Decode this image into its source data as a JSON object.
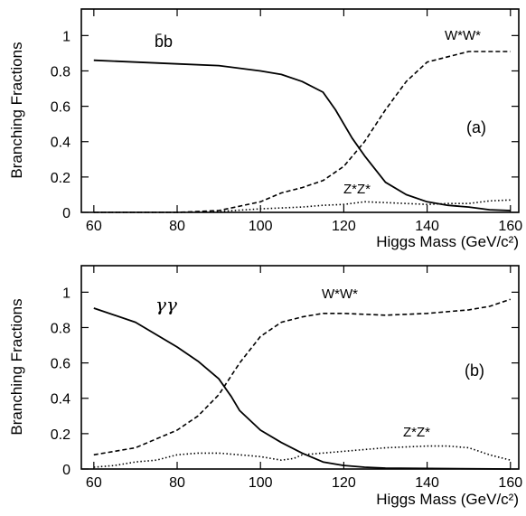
{
  "chart_data": [
    {
      "type": "line",
      "panel_label": "(a)",
      "xlabel": "Higgs Mass (GeV/c²)",
      "ylabel": "Branching Fractions",
      "xlim": [
        57,
        162
      ],
      "ylim": [
        0,
        1.15
      ],
      "xticks": [
        60,
        80,
        100,
        120,
        140,
        160
      ],
      "yticks": [
        0,
        0.2,
        0.4,
        0.6,
        0.8,
        1
      ],
      "grid": false,
      "series": [
        {
          "name": "b̄b",
          "style": "solid",
          "points": [
            [
              60,
              0.86
            ],
            [
              70,
              0.85
            ],
            [
              80,
              0.84
            ],
            [
              90,
              0.83
            ],
            [
              100,
              0.8
            ],
            [
              105,
              0.78
            ],
            [
              110,
              0.74
            ],
            [
              115,
              0.68
            ],
            [
              118,
              0.58
            ],
            [
              120,
              0.5
            ],
            [
              122,
              0.42
            ],
            [
              125,
              0.32
            ],
            [
              130,
              0.17
            ],
            [
              135,
              0.1
            ],
            [
              140,
              0.06
            ],
            [
              145,
              0.04
            ],
            [
              150,
              0.03
            ],
            [
              155,
              0.015
            ],
            [
              160,
              0.01
            ]
          ]
        },
        {
          "name": "W*W*",
          "style": "dashed",
          "points": [
            [
              60,
              0.0
            ],
            [
              80,
              0.0
            ],
            [
              90,
              0.01
            ],
            [
              100,
              0.06
            ],
            [
              105,
              0.11
            ],
            [
              110,
              0.14
            ],
            [
              115,
              0.18
            ],
            [
              120,
              0.26
            ],
            [
              125,
              0.4
            ],
            [
              130,
              0.58
            ],
            [
              135,
              0.74
            ],
            [
              140,
              0.85
            ],
            [
              145,
              0.88
            ],
            [
              150,
              0.91
            ],
            [
              155,
              0.91
            ],
            [
              160,
              0.91
            ]
          ]
        },
        {
          "name": "Z*Z*",
          "style": "dotted",
          "points": [
            [
              60,
              0.0
            ],
            [
              80,
              0.0
            ],
            [
              90,
              0.005
            ],
            [
              100,
              0.02
            ],
            [
              110,
              0.03
            ],
            [
              115,
              0.04
            ],
            [
              120,
              0.045
            ],
            [
              125,
              0.06
            ],
            [
              130,
              0.055
            ],
            [
              140,
              0.045
            ],
            [
              145,
              0.05
            ],
            [
              150,
              0.05
            ],
            [
              155,
              0.065
            ],
            [
              160,
              0.07
            ]
          ]
        }
      ]
    },
    {
      "type": "line",
      "panel_label": "(b)",
      "xlabel": "Higgs Mass (GeV/c²)",
      "ylabel": "Branching Fractions",
      "xlim": [
        57,
        162
      ],
      "ylim": [
        0,
        1.15
      ],
      "xticks": [
        60,
        80,
        100,
        120,
        140,
        160
      ],
      "yticks": [
        0,
        0.2,
        0.4,
        0.6,
        0.8,
        1
      ],
      "grid": false,
      "series": [
        {
          "name": "γγ",
          "style": "solid",
          "points": [
            [
              60,
              0.91
            ],
            [
              70,
              0.83
            ],
            [
              80,
              0.69
            ],
            [
              85,
              0.61
            ],
            [
              90,
              0.51
            ],
            [
              93,
              0.41
            ],
            [
              95,
              0.33
            ],
            [
              100,
              0.22
            ],
            [
              105,
              0.15
            ],
            [
              110,
              0.09
            ],
            [
              115,
              0.04
            ],
            [
              120,
              0.02
            ],
            [
              125,
              0.01
            ],
            [
              130,
              0.005
            ],
            [
              160,
              0.0
            ]
          ]
        },
        {
          "name": "W*W*",
          "style": "dashed",
          "points": [
            [
              60,
              0.08
            ],
            [
              70,
              0.12
            ],
            [
              75,
              0.17
            ],
            [
              80,
              0.22
            ],
            [
              85,
              0.3
            ],
            [
              90,
              0.42
            ],
            [
              95,
              0.6
            ],
            [
              100,
              0.75
            ],
            [
              105,
              0.83
            ],
            [
              110,
              0.86
            ],
            [
              115,
              0.88
            ],
            [
              120,
              0.88
            ],
            [
              130,
              0.87
            ],
            [
              140,
              0.88
            ],
            [
              150,
              0.9
            ],
            [
              155,
              0.92
            ],
            [
              160,
              0.96
            ]
          ]
        },
        {
          "name": "Z*Z*",
          "style": "dotted",
          "points": [
            [
              60,
              0.01
            ],
            [
              65,
              0.02
            ],
            [
              70,
              0.04
            ],
            [
              75,
              0.05
            ],
            [
              80,
              0.08
            ],
            [
              85,
              0.09
            ],
            [
              90,
              0.09
            ],
            [
              95,
              0.08
            ],
            [
              100,
              0.07
            ],
            [
              105,
              0.05
            ],
            [
              108,
              0.06
            ],
            [
              110,
              0.08
            ],
            [
              120,
              0.1
            ],
            [
              130,
              0.12
            ],
            [
              140,
              0.13
            ],
            [
              145,
              0.13
            ],
            [
              150,
              0.12
            ],
            [
              155,
              0.08
            ],
            [
              160,
              0.05
            ]
          ]
        }
      ]
    }
  ]
}
